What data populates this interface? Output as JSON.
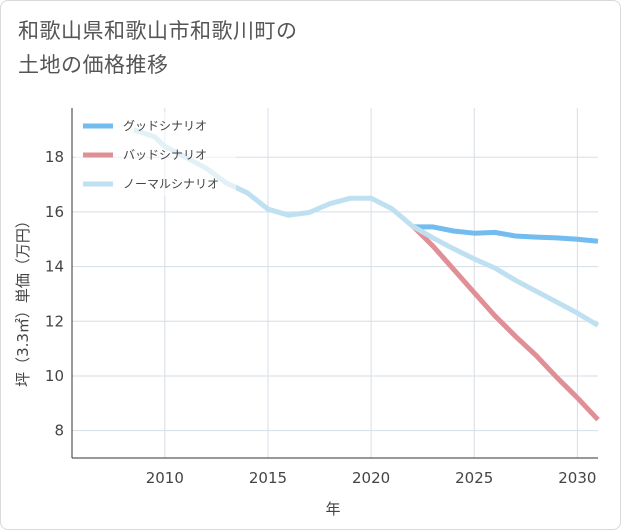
{
  "page": {
    "title_line1": "和歌山県和歌山市和歌川町の",
    "title_line2": "土地の価格推移"
  },
  "chart_data": {
    "type": "line",
    "xlabel": "年",
    "ylabel": "坪（3.3㎡）単価（万円）",
    "xlim": [
      2005.5,
      2031
    ],
    "ylim": [
      7,
      19.8
    ],
    "x_ticks": [
      2010,
      2015,
      2020,
      2025,
      2030
    ],
    "y_ticks": [
      8,
      10,
      12,
      14,
      16,
      18
    ],
    "x_tick_labels": [
      "2010",
      "2015",
      "2020",
      "2025",
      "2030"
    ],
    "y_tick_labels": [
      "8",
      "10",
      "12",
      "14",
      "16",
      "18"
    ],
    "grid": true,
    "legend_position": "top-left",
    "series": [
      {
        "name": "グッドシナリオ",
        "color": "#72bcef",
        "points": [
          [
            2022,
            15.45
          ],
          [
            2023,
            15.45
          ],
          [
            2024,
            15.3
          ],
          [
            2025,
            15.22
          ],
          [
            2026,
            15.25
          ],
          [
            2027,
            15.12
          ],
          [
            2028,
            15.08
          ],
          [
            2029,
            15.05
          ],
          [
            2030,
            15.0
          ],
          [
            2031,
            14.93
          ]
        ]
      },
      {
        "name": "バッドシナリオ",
        "color": "#e08f97",
        "points": [
          [
            2022,
            15.5
          ],
          [
            2023,
            14.75
          ],
          [
            2024,
            13.9
          ],
          [
            2025,
            13.05
          ],
          [
            2026,
            12.2
          ],
          [
            2027,
            11.45
          ],
          [
            2028,
            10.75
          ],
          [
            2029,
            9.95
          ],
          [
            2030,
            9.2
          ],
          [
            2031,
            8.4
          ]
        ]
      },
      {
        "name": "ノーマルシナリオ",
        "color": "#bfe0f0",
        "points": [
          [
            2008.5,
            19.0
          ],
          [
            2009.5,
            18.75
          ],
          [
            2010,
            18.4
          ],
          [
            2011,
            18.0
          ],
          [
            2012,
            17.6
          ],
          [
            2013,
            17.05
          ],
          [
            2014,
            16.7
          ],
          [
            2015,
            16.1
          ],
          [
            2016,
            15.88
          ],
          [
            2017,
            15.98
          ],
          [
            2018,
            16.3
          ],
          [
            2019,
            16.5
          ],
          [
            2020,
            16.5
          ],
          [
            2021,
            16.12
          ],
          [
            2022,
            15.48
          ],
          [
            2023,
            15.05
          ],
          [
            2024,
            14.65
          ],
          [
            2025,
            14.28
          ],
          [
            2026,
            13.95
          ],
          [
            2027,
            13.5
          ],
          [
            2028,
            13.1
          ],
          [
            2029,
            12.7
          ],
          [
            2030,
            12.3
          ],
          [
            2031,
            11.85
          ]
        ]
      }
    ]
  }
}
